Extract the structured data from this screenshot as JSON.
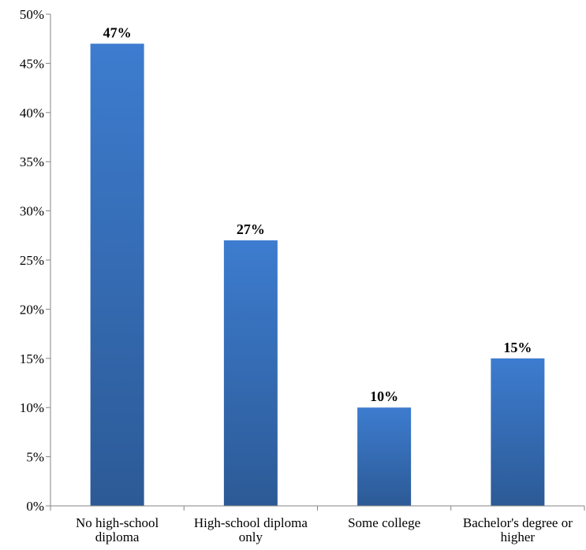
{
  "chart_data": {
    "type": "bar",
    "categories": [
      [
        "No high-school",
        "diploma"
      ],
      [
        "High-school diploma",
        "only"
      ],
      [
        "Some college"
      ],
      [
        "Bachelor's degree or",
        "higher"
      ]
    ],
    "values": [
      47,
      27,
      10,
      15
    ],
    "data_labels": [
      "47%",
      "27%",
      "10%",
      "15%"
    ],
    "y_ticks": [
      0,
      5,
      10,
      15,
      20,
      25,
      30,
      35,
      40,
      45,
      50
    ],
    "y_tick_labels": [
      "0%",
      "5%",
      "10%",
      "15%",
      "20%",
      "25%",
      "30%",
      "35%",
      "40%",
      "45%",
      "50%"
    ],
    "ylim": [
      0,
      50
    ],
    "grid": false,
    "legend": "none",
    "colors": {
      "bar_top": "#3d7ccf",
      "bar_bottom": "#2c5a96",
      "axis": "#868686",
      "text": "#000000"
    }
  }
}
